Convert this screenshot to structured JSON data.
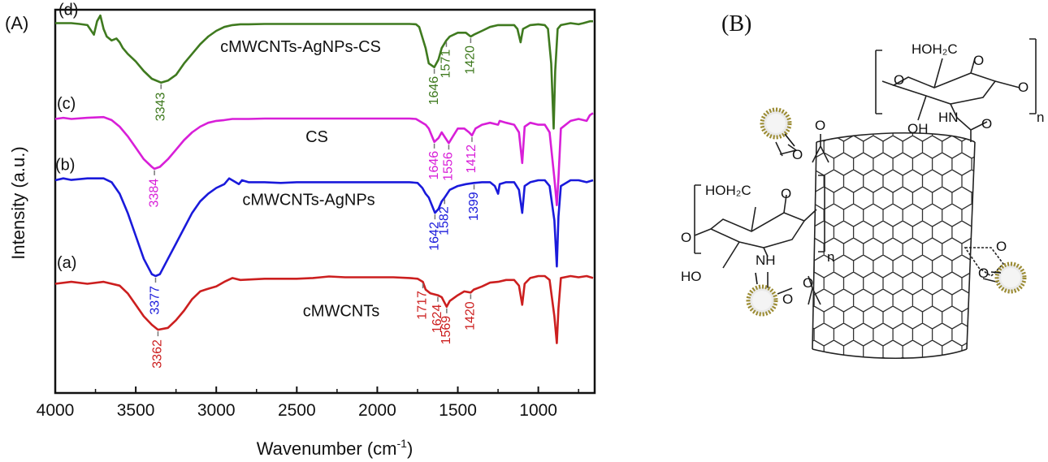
{
  "panels": {
    "a_label": "(A)",
    "b_label": "(B)"
  },
  "chart_data": {
    "type": "line",
    "title": "",
    "xlabel_main": "Wavenumber (cm",
    "xlabel_sup": "-1",
    "xlabel_close": ")",
    "ylabel": "Intensity (a.u.)",
    "xlim": [
      4000,
      650
    ],
    "x_reversed": true,
    "yticks_shown": false,
    "xticks": [
      "4000",
      "3500",
      "3000",
      "2500",
      "2000",
      "1500",
      "1000"
    ],
    "series": [
      {
        "id": "a",
        "tag": "(a)",
        "name": "cMWCNTs",
        "color": "#cc1f1f",
        "baseline": 0.29,
        "points": [
          [
            4000,
            0.285
          ],
          [
            3900,
            0.29
          ],
          [
            3800,
            0.285
          ],
          [
            3700,
            0.29
          ],
          [
            3600,
            0.28
          ],
          [
            3550,
            0.26
          ],
          [
            3500,
            0.23
          ],
          [
            3450,
            0.2
          ],
          [
            3400,
            0.178
          ],
          [
            3362,
            0.165
          ],
          [
            3300,
            0.17
          ],
          [
            3250,
            0.19
          ],
          [
            3200,
            0.215
          ],
          [
            3150,
            0.245
          ],
          [
            3100,
            0.265
          ],
          [
            3050,
            0.272
          ],
          [
            3000,
            0.278
          ],
          [
            2950,
            0.29
          ],
          [
            2900,
            0.3
          ],
          [
            2850,
            0.295
          ],
          [
            2800,
            0.296
          ],
          [
            2700,
            0.298
          ],
          [
            2600,
            0.298
          ],
          [
            2500,
            0.298
          ],
          [
            2400,
            0.3
          ],
          [
            2350,
            0.302
          ],
          [
            2300,
            0.304
          ],
          [
            2250,
            0.303
          ],
          [
            2200,
            0.302
          ],
          [
            2100,
            0.302
          ],
          [
            2000,
            0.302
          ],
          [
            1900,
            0.302
          ],
          [
            1800,
            0.3
          ],
          [
            1750,
            0.298
          ],
          [
            1717,
            0.29
          ],
          [
            1700,
            0.27
          ],
          [
            1670,
            0.26
          ],
          [
            1624,
            0.255
          ],
          [
            1600,
            0.25
          ],
          [
            1569,
            0.225
          ],
          [
            1550,
            0.24
          ],
          [
            1500,
            0.255
          ],
          [
            1460,
            0.265
          ],
          [
            1420,
            0.262
          ],
          [
            1400,
            0.27
          ],
          [
            1350,
            0.278
          ],
          [
            1300,
            0.288
          ],
          [
            1250,
            0.29
          ],
          [
            1200,
            0.295
          ],
          [
            1150,
            0.295
          ],
          [
            1120,
            0.28
          ],
          [
            1100,
            0.23
          ],
          [
            1085,
            0.285
          ],
          [
            1050,
            0.3
          ],
          [
            1000,
            0.305
          ],
          [
            960,
            0.305
          ],
          [
            930,
            0.295
          ],
          [
            900,
            0.2
          ],
          [
            885,
            0.13
          ],
          [
            875,
            0.22
          ],
          [
            860,
            0.3
          ],
          [
            800,
            0.305
          ],
          [
            750,
            0.302
          ],
          [
            700,
            0.305
          ],
          [
            660,
            0.3
          ]
        ]
      },
      {
        "id": "b",
        "tag": "(b)",
        "name": "cMWCNTs-AgNPs",
        "color": "#1a1adb",
        "baseline": 0.56,
        "points": [
          [
            4000,
            0.555
          ],
          [
            3950,
            0.56
          ],
          [
            3900,
            0.556
          ],
          [
            3800,
            0.56
          ],
          [
            3750,
            0.56
          ],
          [
            3700,
            0.56
          ],
          [
            3650,
            0.55
          ],
          [
            3600,
            0.52
          ],
          [
            3550,
            0.47
          ],
          [
            3500,
            0.41
          ],
          [
            3450,
            0.35
          ],
          [
            3400,
            0.31
          ],
          [
            3377,
            0.305
          ],
          [
            3350,
            0.31
          ],
          [
            3300,
            0.35
          ],
          [
            3250,
            0.39
          ],
          [
            3200,
            0.43
          ],
          [
            3150,
            0.47
          ],
          [
            3100,
            0.5
          ],
          [
            3050,
            0.52
          ],
          [
            3000,
            0.535
          ],
          [
            2950,
            0.545
          ],
          [
            2920,
            0.56
          ],
          [
            2900,
            0.555
          ],
          [
            2860,
            0.545
          ],
          [
            2840,
            0.555
          ],
          [
            2800,
            0.55
          ],
          [
            2700,
            0.55
          ],
          [
            2600,
            0.548
          ],
          [
            2500,
            0.55
          ],
          [
            2400,
            0.55
          ],
          [
            2300,
            0.55
          ],
          [
            2200,
            0.55
          ],
          [
            2100,
            0.55
          ],
          [
            2000,
            0.55
          ],
          [
            1900,
            0.55
          ],
          [
            1800,
            0.55
          ],
          [
            1750,
            0.548
          ],
          [
            1720,
            0.535
          ],
          [
            1700,
            0.52
          ],
          [
            1680,
            0.51
          ],
          [
            1642,
            0.47
          ],
          [
            1620,
            0.48
          ],
          [
            1600,
            0.5
          ],
          [
            1582,
            0.51
          ],
          [
            1550,
            0.53
          ],
          [
            1500,
            0.54
          ],
          [
            1450,
            0.545
          ],
          [
            1399,
            0.548
          ],
          [
            1350,
            0.55
          ],
          [
            1300,
            0.55
          ],
          [
            1270,
            0.54
          ],
          [
            1250,
            0.52
          ],
          [
            1240,
            0.545
          ],
          [
            1200,
            0.55
          ],
          [
            1150,
            0.55
          ],
          [
            1120,
            0.53
          ],
          [
            1100,
            0.47
          ],
          [
            1085,
            0.54
          ],
          [
            1050,
            0.55
          ],
          [
            1000,
            0.555
          ],
          [
            960,
            0.555
          ],
          [
            930,
            0.54
          ],
          [
            900,
            0.45
          ],
          [
            885,
            0.33
          ],
          [
            875,
            0.46
          ],
          [
            860,
            0.54
          ],
          [
            800,
            0.555
          ],
          [
            750,
            0.555
          ],
          [
            700,
            0.55
          ],
          [
            660,
            0.555
          ]
        ]
      },
      {
        "id": "c",
        "tag": "(c)",
        "name": "CS",
        "color": "#d81fd8",
        "baseline": 0.72,
        "points": [
          [
            4000,
            0.715
          ],
          [
            3950,
            0.718
          ],
          [
            3900,
            0.715
          ],
          [
            3800,
            0.718
          ],
          [
            3700,
            0.72
          ],
          [
            3650,
            0.712
          ],
          [
            3600,
            0.695
          ],
          [
            3550,
            0.67
          ],
          [
            3500,
            0.64
          ],
          [
            3450,
            0.61
          ],
          [
            3400,
            0.59
          ],
          [
            3384,
            0.585
          ],
          [
            3350,
            0.59
          ],
          [
            3300,
            0.61
          ],
          [
            3250,
            0.635
          ],
          [
            3200,
            0.66
          ],
          [
            3150,
            0.68
          ],
          [
            3100,
            0.695
          ],
          [
            3050,
            0.705
          ],
          [
            3000,
            0.71
          ],
          [
            2950,
            0.712
          ],
          [
            2900,
            0.715
          ],
          [
            2800,
            0.715
          ],
          [
            2700,
            0.716
          ],
          [
            2600,
            0.716
          ],
          [
            2500,
            0.716
          ],
          [
            2400,
            0.716
          ],
          [
            2300,
            0.716
          ],
          [
            2200,
            0.716
          ],
          [
            2100,
            0.716
          ],
          [
            2000,
            0.716
          ],
          [
            1900,
            0.716
          ],
          [
            1800,
            0.716
          ],
          [
            1760,
            0.715
          ],
          [
            1740,
            0.71
          ],
          [
            1700,
            0.7
          ],
          [
            1680,
            0.69
          ],
          [
            1646,
            0.655
          ],
          [
            1620,
            0.665
          ],
          [
            1600,
            0.68
          ],
          [
            1556,
            0.652
          ],
          [
            1530,
            0.67
          ],
          [
            1500,
            0.69
          ],
          [
            1460,
            0.69
          ],
          [
            1430,
            0.68
          ],
          [
            1412,
            0.672
          ],
          [
            1390,
            0.69
          ],
          [
            1350,
            0.7
          ],
          [
            1300,
            0.705
          ],
          [
            1250,
            0.7
          ],
          [
            1240,
            0.71
          ],
          [
            1200,
            0.705
          ],
          [
            1150,
            0.7
          ],
          [
            1120,
            0.68
          ],
          [
            1100,
            0.6
          ],
          [
            1085,
            0.695
          ],
          [
            1050,
            0.705
          ],
          [
            1000,
            0.7
          ],
          [
            960,
            0.7
          ],
          [
            930,
            0.68
          ],
          [
            900,
            0.56
          ],
          [
            885,
            0.49
          ],
          [
            875,
            0.56
          ],
          [
            860,
            0.69
          ],
          [
            800,
            0.71
          ],
          [
            750,
            0.715
          ],
          [
            700,
            0.71
          ],
          [
            680,
            0.725
          ],
          [
            660,
            0.73
          ]
        ]
      },
      {
        "id": "d",
        "tag": "(d)",
        "name": "cMWCNTs-AgNPs-CS",
        "color": "#3f7a1f",
        "baseline": 0.965,
        "points": [
          [
            4000,
            0.965
          ],
          [
            3900,
            0.965
          ],
          [
            3850,
            0.963
          ],
          [
            3800,
            0.96
          ],
          [
            3760,
            0.935
          ],
          [
            3740,
            0.97
          ],
          [
            3720,
            0.985
          ],
          [
            3700,
            0.95
          ],
          [
            3680,
            0.93
          ],
          [
            3650,
            0.92
          ],
          [
            3620,
            0.925
          ],
          [
            3600,
            0.915
          ],
          [
            3580,
            0.9
          ],
          [
            3550,
            0.885
          ],
          [
            3500,
            0.865
          ],
          [
            3450,
            0.84
          ],
          [
            3400,
            0.82
          ],
          [
            3343,
            0.81
          ],
          [
            3300,
            0.815
          ],
          [
            3250,
            0.83
          ],
          [
            3200,
            0.86
          ],
          [
            3150,
            0.885
          ],
          [
            3100,
            0.91
          ],
          [
            3050,
            0.93
          ],
          [
            3000,
            0.945
          ],
          [
            2950,
            0.955
          ],
          [
            2900,
            0.96
          ],
          [
            2850,
            0.962
          ],
          [
            2800,
            0.962
          ],
          [
            2700,
            0.963
          ],
          [
            2600,
            0.963
          ],
          [
            2500,
            0.963
          ],
          [
            2400,
            0.963
          ],
          [
            2300,
            0.963
          ],
          [
            2200,
            0.963
          ],
          [
            2100,
            0.963
          ],
          [
            2000,
            0.963
          ],
          [
            1900,
            0.963
          ],
          [
            1800,
            0.963
          ],
          [
            1760,
            0.962
          ],
          [
            1740,
            0.955
          ],
          [
            1700,
            0.9
          ],
          [
            1680,
            0.86
          ],
          [
            1646,
            0.85
          ],
          [
            1620,
            0.87
          ],
          [
            1600,
            0.9
          ],
          [
            1571,
            0.92
          ],
          [
            1550,
            0.93
          ],
          [
            1500,
            0.94
          ],
          [
            1450,
            0.94
          ],
          [
            1420,
            0.93
          ],
          [
            1400,
            0.935
          ],
          [
            1350,
            0.945
          ],
          [
            1300,
            0.955
          ],
          [
            1250,
            0.96
          ],
          [
            1200,
            0.96
          ],
          [
            1150,
            0.96
          ],
          [
            1130,
            0.95
          ],
          [
            1110,
            0.915
          ],
          [
            1095,
            0.95
          ],
          [
            1050,
            0.96
          ],
          [
            1000,
            0.962
          ],
          [
            960,
            0.96
          ],
          [
            940,
            0.95
          ],
          [
            920,
            0.86
          ],
          [
            905,
            0.69
          ],
          [
            895,
            0.84
          ],
          [
            880,
            0.95
          ],
          [
            860,
            0.96
          ],
          [
            800,
            0.965
          ],
          [
            750,
            0.962
          ],
          [
            720,
            0.965
          ],
          [
            680,
            0.97
          ],
          [
            660,
            0.97
          ]
        ]
      }
    ],
    "peak_labels": [
      {
        "series": "a",
        "values": [
          "3362",
          "1717",
          "1624",
          "1569",
          "1420"
        ]
      },
      {
        "series": "b",
        "values": [
          "3377",
          "1642",
          "1582",
          "1399"
        ]
      },
      {
        "series": "c",
        "values": [
          "3384",
          "1646",
          "1556",
          "1412"
        ]
      },
      {
        "series": "d",
        "values": [
          "3343",
          "1646",
          "1571",
          "1420"
        ]
      }
    ]
  },
  "scheme": {
    "labels": {
      "hoh2c_top": "HOH₂C",
      "o_ring_top": "O",
      "oh_top": "OH",
      "hn_top": "HN",
      "o_amide_top": "O",
      "o_left_top": "O",
      "o_right_top": "O",
      "n_top": "n",
      "hoh2c_left": "HOH₂C",
      "o_ring_left": "O",
      "nh_left": "NH",
      "ho_left": "HO",
      "o_link_left": "O",
      "n_left": "n",
      "o_ester1": "O",
      "o_ester2": "O",
      "o_ester3": "O",
      "o_ester4": "O",
      "o_right1": "O",
      "o_right2": "O"
    }
  }
}
